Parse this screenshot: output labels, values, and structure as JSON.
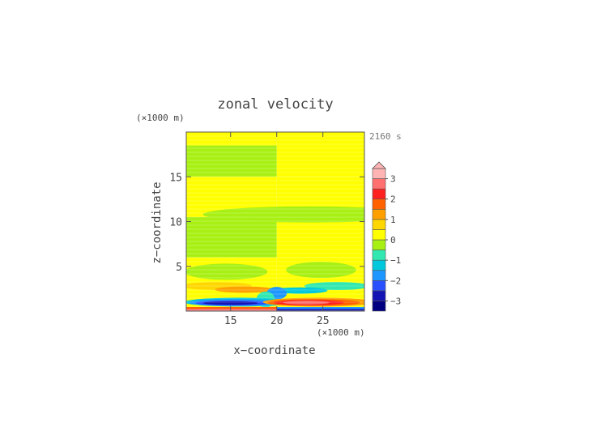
{
  "chart_data": {
    "type": "heatmap",
    "title": "zonal velocity",
    "time_label": "2160 s",
    "xlabel": "x−coordinate",
    "ylabel": "z−coordinate",
    "x_unit": "(×1000 m)",
    "y_unit": "(×1000 m)",
    "xlim": [
      10.2,
      29.5
    ],
    "ylim": [
      0,
      20
    ],
    "x_ticks": [
      15,
      20,
      25
    ],
    "y_ticks": [
      5,
      10,
      15
    ],
    "x_tick_labels": [
      "15",
      "20",
      "25"
    ],
    "y_tick_labels": [
      "5",
      "10",
      "15"
    ],
    "colorbar": {
      "levels": [
        -3.5,
        -3,
        -2.5,
        -2,
        -1.5,
        -1,
        -0.5,
        0,
        0.5,
        1,
        1.5,
        2,
        2.5,
        3,
        3.5
      ],
      "tick_values": [
        -3,
        -2,
        -1,
        0,
        1,
        2,
        3
      ],
      "tick_labels": [
        "−3",
        "−2",
        "−1",
        "0",
        "1",
        "2",
        "3"
      ],
      "colors": [
        "#000080",
        "#1414b4",
        "#2850ff",
        "#1e96ff",
        "#00c8dc",
        "#30e8b0",
        "#a8f014",
        "#ffff00",
        "#ffd700",
        "#ffa000",
        "#ff6000",
        "#ff2020",
        "#ff7070",
        "#ffb4b4"
      ],
      "extend": "max"
    },
    "bands": [
      {
        "y": [
          18.5,
          20
        ],
        "left": 0.25,
        "right": 0.25
      },
      {
        "y": [
          15,
          18.5
        ],
        "left": -0.25,
        "right": 0.25
      },
      {
        "y": [
          10.5,
          15
        ],
        "left": 0.25,
        "right": 0.25
      },
      {
        "y": [
          6,
          10.5
        ],
        "left": -0.25,
        "right": 0.25
      },
      {
        "y": [
          0,
          6
        ],
        "left": 0.25,
        "right": 0.25
      }
    ],
    "features": [
      {
        "kind": "blob",
        "cx": 23.5,
        "cy": 10.8,
        "rx": 11.5,
        "ry": 0.9,
        "value": -0.25
      },
      {
        "kind": "blob",
        "cx": 14.5,
        "cy": 4.4,
        "rx": 4.5,
        "ry": 0.9,
        "value": -0.25
      },
      {
        "kind": "blob",
        "cx": 24.8,
        "cy": 4.6,
        "rx": 3.8,
        "ry": 0.9,
        "value": -0.25
      },
      {
        "kind": "blob",
        "cx": 13.5,
        "cy": 2.8,
        "rx": 3.8,
        "ry": 0.45,
        "value": 0.75
      },
      {
        "kind": "blob",
        "cx": 16.5,
        "cy": 2.4,
        "rx": 3.2,
        "ry": 0.35,
        "value": 1.25
      },
      {
        "kind": "blob",
        "cx": 26.5,
        "cy": 2.8,
        "rx": 3.5,
        "ry": 0.45,
        "value": -0.75
      },
      {
        "kind": "blob",
        "cx": 22.5,
        "cy": 2.3,
        "rx": 3.0,
        "ry": 0.35,
        "value": -1.25
      },
      {
        "kind": "blob",
        "cx": 20.0,
        "cy": 2.0,
        "rx": 1.1,
        "ry": 0.7,
        "value": -1.75
      },
      {
        "kind": "blob",
        "cx": 18.8,
        "cy": 1.3,
        "rx": 1.0,
        "ry": 0.9,
        "value": -0.75
      },
      {
        "kind": "blob",
        "cx": 16.0,
        "cy": 1.0,
        "rx": 6.0,
        "ry": 0.5,
        "value": -1.25
      },
      {
        "kind": "blob",
        "cx": 15.5,
        "cy": 0.95,
        "rx": 5.0,
        "ry": 0.38,
        "value": -1.75
      },
      {
        "kind": "blob",
        "cx": 15.2,
        "cy": 0.9,
        "rx": 4.0,
        "ry": 0.28,
        "value": -2.25
      },
      {
        "kind": "blob",
        "cx": 15.0,
        "cy": 0.9,
        "rx": 3.0,
        "ry": 0.2,
        "value": -2.75
      },
      {
        "kind": "blob",
        "cx": 24.5,
        "cy": 1.0,
        "rx": 6.0,
        "ry": 0.5,
        "value": 1.25
      },
      {
        "kind": "blob",
        "cx": 24.0,
        "cy": 0.95,
        "rx": 5.0,
        "ry": 0.38,
        "value": 1.75
      },
      {
        "kind": "blob",
        "cx": 23.5,
        "cy": 0.95,
        "rx": 3.8,
        "ry": 0.28,
        "value": 2.25
      },
      {
        "kind": "blob",
        "cx": 23.2,
        "cy": 0.95,
        "rx": 2.5,
        "ry": 0.2,
        "value": 2.75
      },
      {
        "kind": "strip",
        "x": [
          10.2,
          20.0
        ],
        "y": [
          0,
          0.45
        ],
        "value": 1.75
      },
      {
        "kind": "strip",
        "x": [
          10.2,
          20.0
        ],
        "y": [
          0,
          0.25
        ],
        "value": 2.75
      },
      {
        "kind": "strip",
        "x": [
          20.0,
          29.5
        ],
        "y": [
          0,
          0.45
        ],
        "value": -1.75
      },
      {
        "kind": "strip",
        "x": [
          20.0,
          29.5
        ],
        "y": [
          0,
          0.25
        ],
        "value": -2.75
      }
    ]
  }
}
